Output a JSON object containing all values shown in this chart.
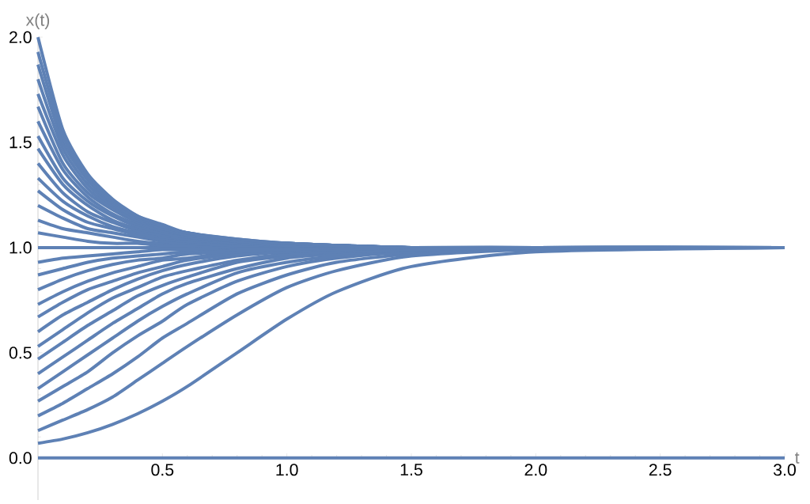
{
  "chart_data": {
    "type": "line",
    "xlabel": "t",
    "ylabel": "x(t)",
    "xlim": [
      0,
      3
    ],
    "ylim": [
      -0.2,
      2.0
    ],
    "xticks": [
      {
        "value": 0.5,
        "label": "0.5"
      },
      {
        "value": 1.0,
        "label": "1.0"
      },
      {
        "value": 1.5,
        "label": "1.5"
      },
      {
        "value": 2.0,
        "label": "2.0"
      },
      {
        "value": 2.5,
        "label": "2.5"
      },
      {
        "value": 3.0,
        "label": "3.0"
      }
    ],
    "yticks": [
      {
        "value": 0.0,
        "label": "0.0"
      },
      {
        "value": 0.5,
        "label": "0.5"
      },
      {
        "value": 1.0,
        "label": "1.0"
      },
      {
        "value": 1.5,
        "label": "1.5"
      },
      {
        "value": 2.0,
        "label": "2.0"
      }
    ],
    "marker": "none",
    "line_style": "solid",
    "x": [
      0,
      0.1,
      0.2,
      0.3,
      0.4,
      0.5,
      0.6,
      0.8,
      1.0,
      1.2,
      1.5,
      2.0,
      3.0
    ],
    "series": [
      {
        "color": "#5e81b5",
        "values": [
          0,
          0,
          0,
          0,
          0,
          0,
          0,
          0,
          0,
          0,
          0,
          0,
          0
        ]
      },
      {
        "color": "#5e81b5",
        "values": [
          0.07,
          0.09,
          0.12,
          0.16,
          0.21,
          0.27,
          0.34,
          0.5,
          0.66,
          0.79,
          0.91,
          0.98,
          1.0
        ]
      },
      {
        "color": "#5e81b5",
        "values": [
          0.13,
          0.18,
          0.23,
          0.29,
          0.37,
          0.45,
          0.53,
          0.68,
          0.81,
          0.89,
          0.96,
          0.99,
          1.0
        ]
      },
      {
        "color": "#5e81b5",
        "values": [
          0.2,
          0.26,
          0.33,
          0.4,
          0.48,
          0.57,
          0.64,
          0.78,
          0.87,
          0.93,
          0.97,
          1.0,
          1.0
        ]
      },
      {
        "color": "#5e81b5",
        "values": [
          0.27,
          0.34,
          0.41,
          0.5,
          0.58,
          0.65,
          0.73,
          0.84,
          0.91,
          0.95,
          0.98,
          1.0,
          1.0
        ]
      },
      {
        "color": "#5e81b5",
        "values": [
          0.33,
          0.41,
          0.49,
          0.57,
          0.65,
          0.72,
          0.78,
          0.88,
          0.93,
          0.96,
          0.99,
          1.0,
          1.0
        ]
      },
      {
        "color": "#5e81b5",
        "values": [
          0.4,
          0.48,
          0.56,
          0.64,
          0.71,
          0.78,
          0.83,
          0.9,
          0.95,
          0.97,
          0.99,
          1.0,
          1.0
        ]
      },
      {
        "color": "#5e81b5",
        "values": [
          0.47,
          0.55,
          0.63,
          0.7,
          0.77,
          0.82,
          0.86,
          0.93,
          0.96,
          0.98,
          0.99,
          1.0,
          1.0
        ]
      },
      {
        "color": "#5e81b5",
        "values": [
          0.53,
          0.61,
          0.69,
          0.76,
          0.81,
          0.86,
          0.89,
          0.94,
          0.97,
          0.98,
          0.99,
          1.0,
          1.0
        ]
      },
      {
        "color": "#5e81b5",
        "values": [
          0.6,
          0.68,
          0.74,
          0.8,
          0.85,
          0.89,
          0.92,
          0.96,
          0.98,
          0.99,
          1.0,
          1.0,
          1.0
        ]
      },
      {
        "color": "#5e81b5",
        "values": [
          0.67,
          0.74,
          0.8,
          0.84,
          0.88,
          0.91,
          0.94,
          0.97,
          0.98,
          0.99,
          1.0,
          1.0,
          1.0
        ]
      },
      {
        "color": "#5e81b5",
        "values": [
          0.73,
          0.79,
          0.84,
          0.88,
          0.91,
          0.94,
          0.95,
          0.98,
          0.99,
          0.99,
          1.0,
          1.0,
          1.0
        ]
      },
      {
        "color": "#5e81b5",
        "values": [
          0.8,
          0.85,
          0.89,
          0.92,
          0.94,
          0.95,
          0.97,
          0.98,
          0.99,
          1.0,
          1.0,
          1.0,
          1.0
        ]
      },
      {
        "color": "#5e81b5",
        "values": [
          0.87,
          0.9,
          0.93,
          0.95,
          0.96,
          0.97,
          0.98,
          0.99,
          0.99,
          1.0,
          1.0,
          1.0,
          1.0
        ]
      },
      {
        "color": "#5e81b5",
        "values": [
          0.93,
          0.95,
          0.96,
          0.97,
          0.98,
          0.99,
          0.99,
          1.0,
          1.0,
          1.0,
          1.0,
          1.0,
          1.0
        ]
      },
      {
        "color": "#5e81b5",
        "values": [
          1.0,
          1.0,
          1.0,
          1.0,
          1.0,
          1.0,
          1.0,
          1.0,
          1.0,
          1.0,
          1.0,
          1.0,
          1.0
        ]
      },
      {
        "color": "#5e81b5",
        "values": [
          1.07,
          1.05,
          1.03,
          1.02,
          1.02,
          1.01,
          1.01,
          1.0,
          1.0,
          1.0,
          1.0,
          1.0,
          1.0
        ]
      },
      {
        "color": "#5e81b5",
        "values": [
          1.13,
          1.09,
          1.07,
          1.05,
          1.03,
          1.02,
          1.02,
          1.01,
          1.0,
          1.0,
          1.0,
          1.0,
          1.0
        ]
      },
      {
        "color": "#5e81b5",
        "values": [
          1.2,
          1.14,
          1.09,
          1.07,
          1.05,
          1.03,
          1.02,
          1.01,
          1.01,
          1.0,
          1.0,
          1.0,
          1.0
        ]
      },
      {
        "color": "#5e81b5",
        "values": [
          1.27,
          1.18,
          1.12,
          1.09,
          1.06,
          1.04,
          1.03,
          1.02,
          1.01,
          1.0,
          1.0,
          1.0,
          1.0
        ]
      },
      {
        "color": "#5e81b5",
        "values": [
          1.33,
          1.22,
          1.15,
          1.1,
          1.07,
          1.05,
          1.04,
          1.02,
          1.01,
          1.01,
          1.0,
          1.0,
          1.0
        ]
      },
      {
        "color": "#5e81b5",
        "values": [
          1.4,
          1.26,
          1.17,
          1.12,
          1.08,
          1.06,
          1.04,
          1.02,
          1.01,
          1.01,
          1.0,
          1.0,
          1.0
        ]
      },
      {
        "color": "#5e81b5",
        "values": [
          1.47,
          1.3,
          1.2,
          1.13,
          1.09,
          1.07,
          1.05,
          1.02,
          1.01,
          1.01,
          1.0,
          1.0,
          1.0
        ]
      },
      {
        "color": "#5e81b5",
        "values": [
          1.53,
          1.33,
          1.22,
          1.15,
          1.1,
          1.07,
          1.05,
          1.03,
          1.01,
          1.01,
          1.0,
          1.0,
          1.0
        ]
      },
      {
        "color": "#5e81b5",
        "values": [
          1.6,
          1.37,
          1.24,
          1.16,
          1.11,
          1.08,
          1.06,
          1.03,
          1.01,
          1.01,
          1.0,
          1.0,
          1.0
        ]
      },
      {
        "color": "#5e81b5",
        "values": [
          1.67,
          1.4,
          1.26,
          1.18,
          1.12,
          1.08,
          1.06,
          1.03,
          1.02,
          1.01,
          1.0,
          1.0,
          1.0
        ]
      },
      {
        "color": "#5e81b5",
        "values": [
          1.73,
          1.44,
          1.28,
          1.19,
          1.13,
          1.09,
          1.06,
          1.03,
          1.02,
          1.01,
          1.0,
          1.0,
          1.0
        ]
      },
      {
        "color": "#5e81b5",
        "values": [
          1.8,
          1.47,
          1.3,
          1.2,
          1.14,
          1.09,
          1.07,
          1.03,
          1.02,
          1.01,
          1.0,
          1.0,
          1.0
        ]
      },
      {
        "color": "#5e81b5",
        "values": [
          1.87,
          1.5,
          1.32,
          1.21,
          1.14,
          1.1,
          1.07,
          1.03,
          1.02,
          1.01,
          1.0,
          1.0,
          1.0
        ]
      },
      {
        "color": "#5e81b5",
        "values": [
          1.93,
          1.53,
          1.33,
          1.22,
          1.15,
          1.1,
          1.07,
          1.04,
          1.02,
          1.01,
          1.0,
          1.0,
          1.0
        ]
      },
      {
        "color": "#5e81b5",
        "values": [
          2.0,
          1.56,
          1.35,
          1.23,
          1.15,
          1.11,
          1.07,
          1.04,
          1.02,
          1.01,
          1.0,
          1.0,
          1.0
        ]
      }
    ]
  }
}
